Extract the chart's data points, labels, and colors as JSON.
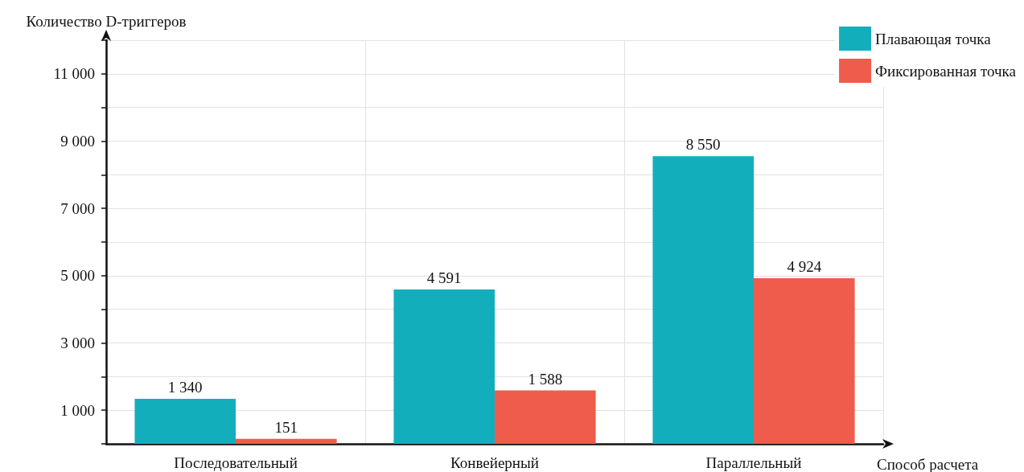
{
  "chart_data": {
    "type": "bar",
    "xlabel": "Способ расчета",
    "ylabel": "Количество D-триггеров",
    "categories": [
      "Последовательный",
      "Конвейерный",
      "Параллельный"
    ],
    "series": [
      {
        "name": "Плавающая точка",
        "color": "#13aebc",
        "values": [
          1340,
          4591,
          8550
        ],
        "value_labels": [
          "1 340",
          "4 591",
          "8 550"
        ]
      },
      {
        "name": "Фиксированная точка",
        "color": "#ef5c4b",
        "values": [
          151,
          1588,
          4924
        ],
        "value_labels": [
          "151",
          "1 588",
          "4 924"
        ]
      }
    ],
    "ylim": [
      0,
      12000
    ],
    "yticks": [
      {
        "value": 0,
        "label": null
      },
      {
        "value": 1000,
        "label": "1 000"
      },
      {
        "value": 2000,
        "label": null
      },
      {
        "value": 3000,
        "label": "3 000"
      },
      {
        "value": 4000,
        "label": null
      },
      {
        "value": 5000,
        "label": "5 000"
      },
      {
        "value": 6000,
        "label": null
      },
      {
        "value": 7000,
        "label": "7 000"
      },
      {
        "value": 8000,
        "label": null
      },
      {
        "value": 9000,
        "label": "9 000"
      },
      {
        "value": 10000,
        "label": null
      },
      {
        "value": 11000,
        "label": "11 000"
      },
      {
        "value": 12000,
        "label": null
      }
    ],
    "grid": true,
    "legend": "top right"
  }
}
